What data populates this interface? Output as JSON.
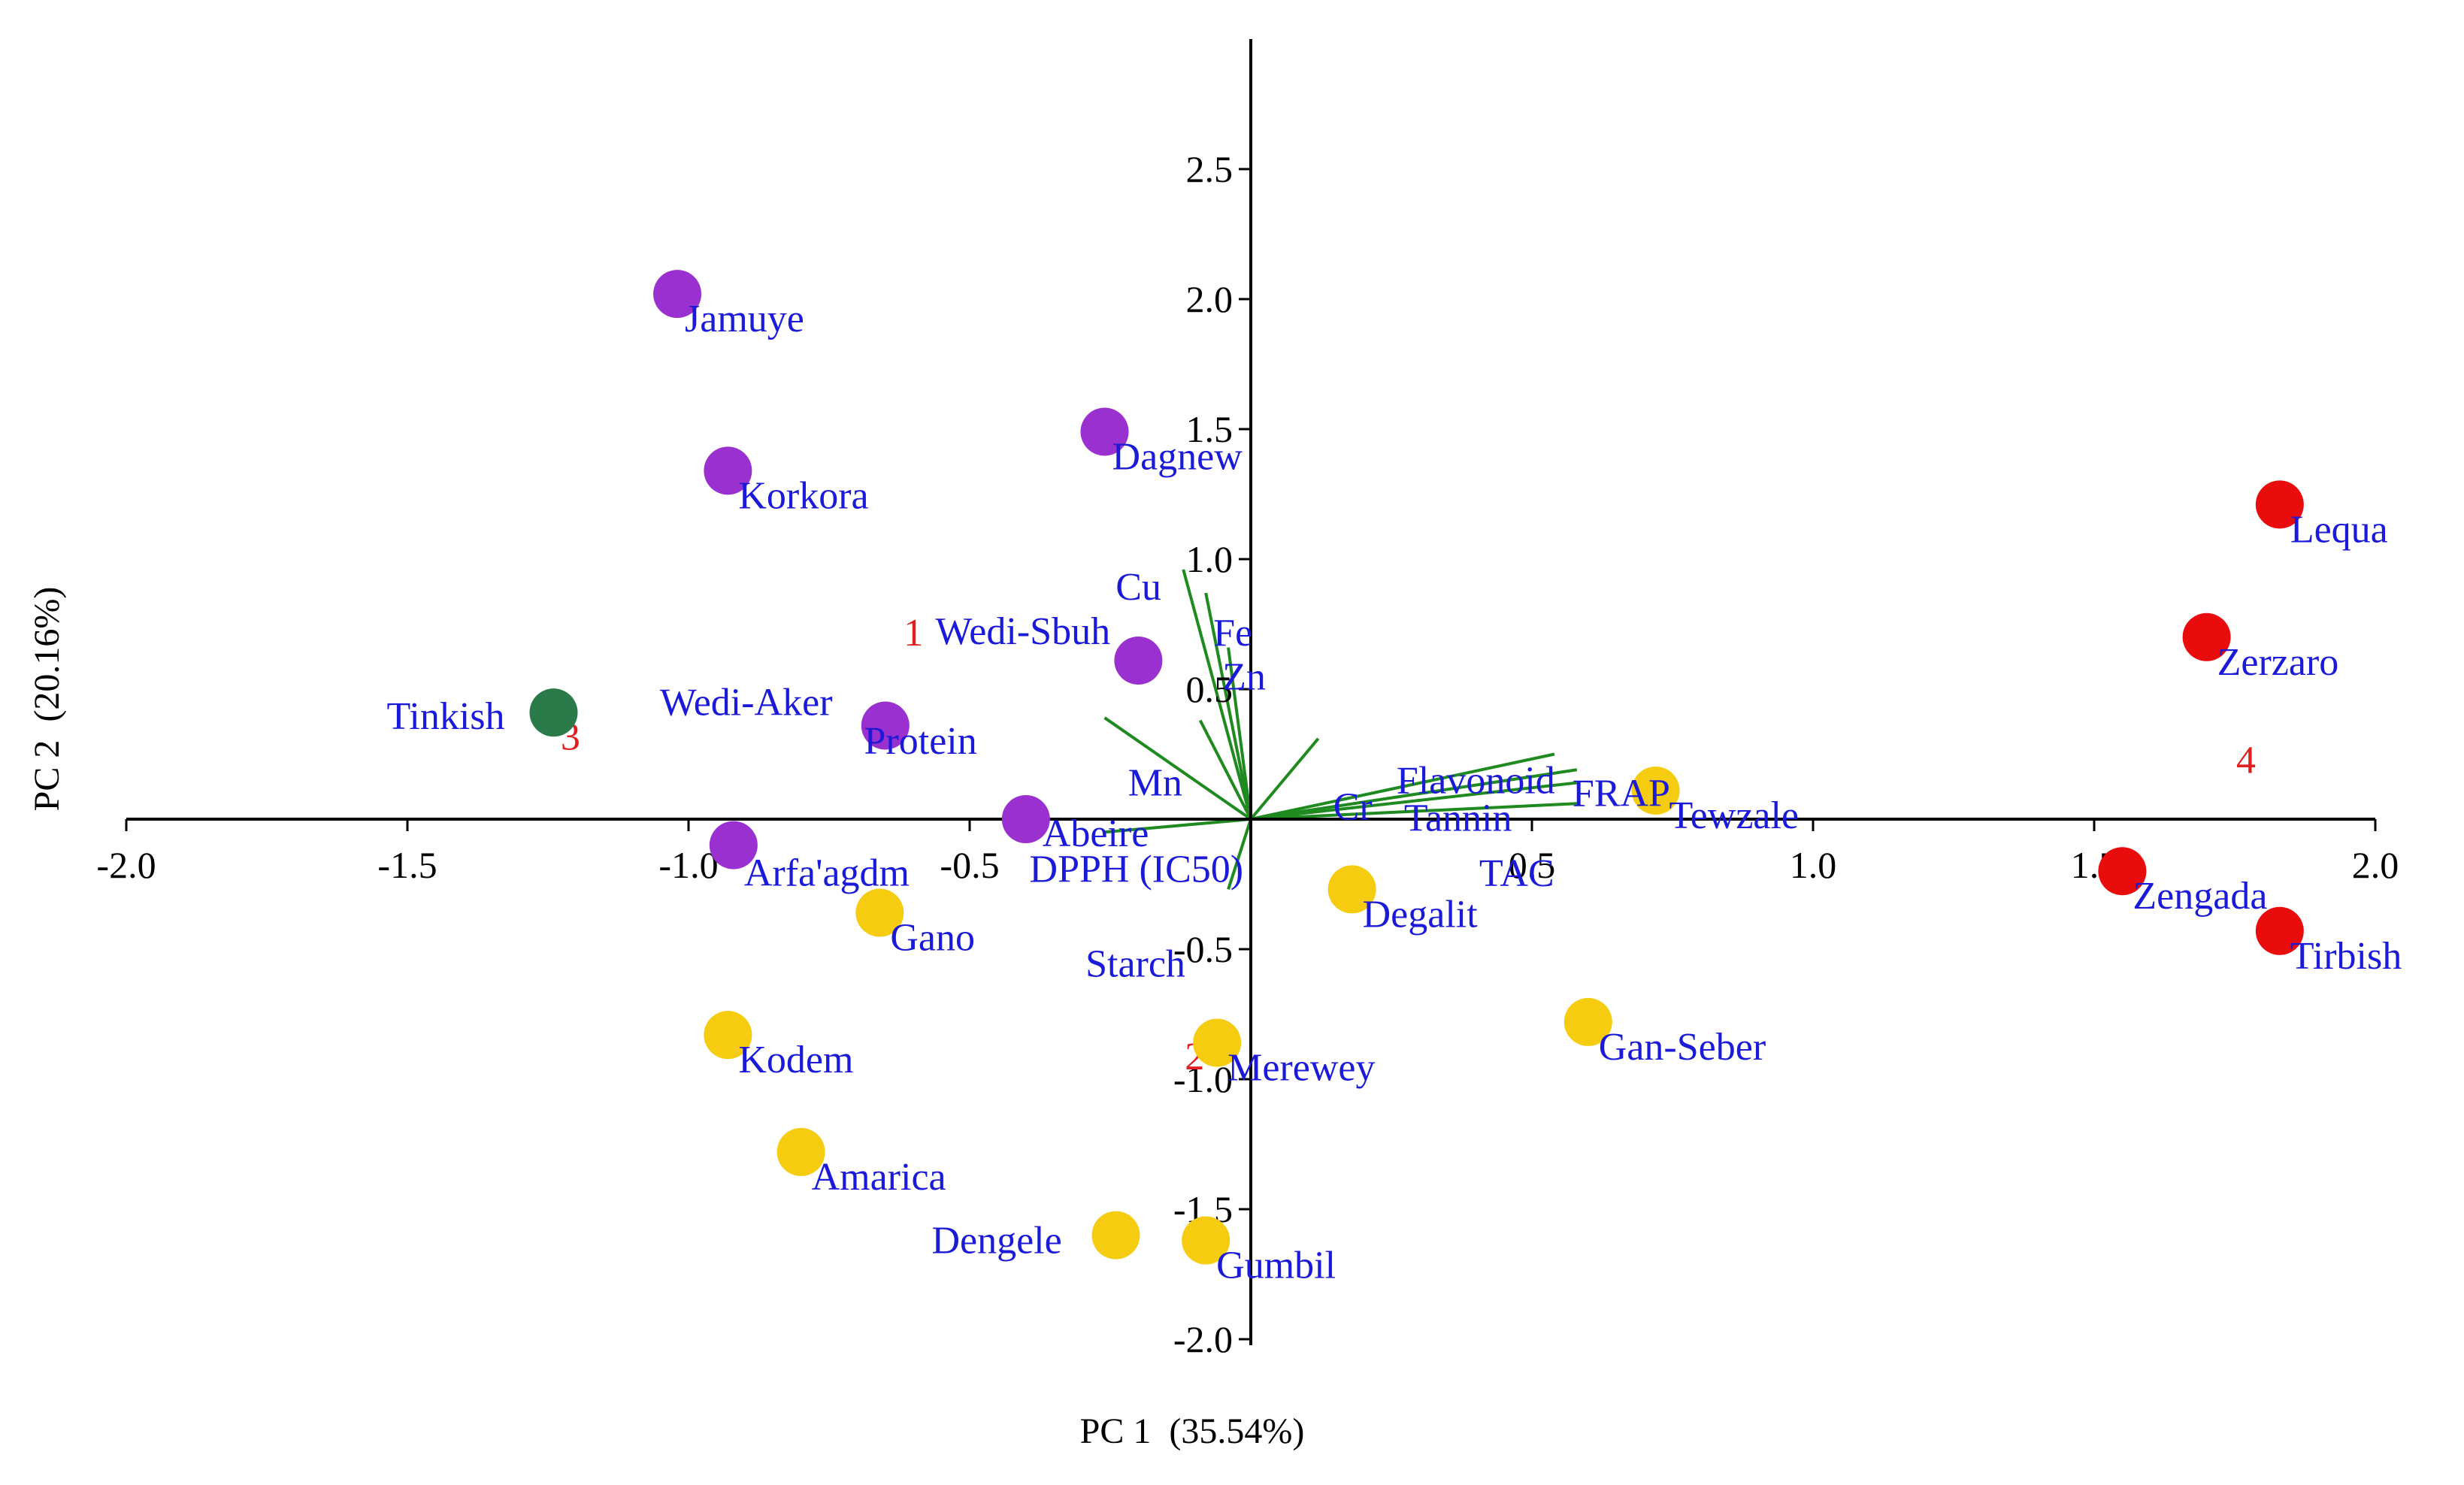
{
  "chart_data": {
    "type": "scatter",
    "subtype": "pca-biplot",
    "xlabel": "PC 1  (35.54%)",
    "ylabel": "PC 2  (20.16%)",
    "xlim": [
      -2.0,
      2.0
    ],
    "ylim": [
      -2.0,
      2.9
    ],
    "grid": false,
    "x_ticks": [
      -2.0,
      -1.5,
      -1.0,
      -0.5,
      0.5,
      1.0,
      1.5,
      2.0
    ],
    "x_tick_labels": [
      "-2.0",
      "-1.5",
      "-1.0",
      "-0.5",
      "0.5",
      "1.0",
      "1.5",
      "2.0"
    ],
    "y_ticks": [
      2.5,
      2.0,
      1.5,
      1.0,
      0.5,
      -0.5,
      -1.0,
      -1.5,
      -2.0
    ],
    "y_tick_labels": [
      "2.5",
      "2.0",
      "1.5",
      "1.0",
      "0.5",
      "-0.5",
      "-1.0",
      "-1.5",
      "-2.0"
    ],
    "colors": {
      "group_1": "#9b30d0",
      "group_2": "#f5cc10",
      "group_3": "#2a7a4a",
      "group_4": "#e80c0c",
      "loading_vector": "#1f8a1f",
      "label_text": "#1a1ad8",
      "cluster_number": "#e02020",
      "axis": "#000000"
    },
    "series": [
      {
        "group": "1",
        "color": "#9b30d0",
        "points": [
          {
            "label": "Jamuye",
            "x": -1.02,
            "y": 2.02
          },
          {
            "label": "Korkora",
            "x": -0.93,
            "y": 1.34
          },
          {
            "label": "Dagnew",
            "x": -0.26,
            "y": 1.49
          },
          {
            "label": "Wedi-Sbuh",
            "x": -0.2,
            "y": 0.61
          },
          {
            "label": "Wedi-Aker",
            "x": -0.65,
            "y": 0.36
          },
          {
            "label": "Arfa'agdm",
            "x": -0.92,
            "y": -0.1
          },
          {
            "label": "Abeire",
            "x": -0.4,
            "y": 0.0
          }
        ]
      },
      {
        "group": "2",
        "color": "#f5cc10",
        "points": [
          {
            "label": "Tewzale",
            "x": 0.72,
            "y": 0.11
          },
          {
            "label": "Degalit",
            "x": 0.18,
            "y": -0.27
          },
          {
            "label": "Gano",
            "x": -0.66,
            "y": -0.36
          },
          {
            "label": "Gan-Seber",
            "x": 0.6,
            "y": -0.78
          },
          {
            "label": "Kodem",
            "x": -0.93,
            "y": -0.83
          },
          {
            "label": "Merewey",
            "x": -0.06,
            "y": -0.86
          },
          {
            "label": "Amarica",
            "x": -0.8,
            "y": -1.28
          },
          {
            "label": "Dengele",
            "x": -0.24,
            "y": -1.6
          },
          {
            "label": "Gumbil",
            "x": -0.08,
            "y": -1.62
          }
        ]
      },
      {
        "group": "3",
        "color": "#2a7a4a",
        "points": [
          {
            "label": "Tinkish",
            "x": -1.24,
            "y": 0.41
          }
        ]
      },
      {
        "group": "4",
        "color": "#e80c0c",
        "points": [
          {
            "label": "Lequa",
            "x": 1.83,
            "y": 1.21
          },
          {
            "label": "Zerzaro",
            "x": 1.7,
            "y": 0.7
          },
          {
            "label": "Zengada",
            "x": 1.55,
            "y": -0.2
          },
          {
            "label": "Tirbish",
            "x": 1.83,
            "y": -0.43
          }
        ]
      }
    ],
    "loadings": [
      {
        "label": "Cu",
        "x": -0.12,
        "y": 0.96
      },
      {
        "label": "Fe",
        "x": -0.08,
        "y": 0.87
      },
      {
        "label": "Zn",
        "x": -0.04,
        "y": 0.66
      },
      {
        "label": "Protein",
        "x": -0.26,
        "y": 0.39
      },
      {
        "label": "Mn",
        "x": -0.09,
        "y": 0.38
      },
      {
        "label": "Cr",
        "x": 0.12,
        "y": 0.31
      },
      {
        "label": "Flavonoid",
        "x": 0.54,
        "y": 0.25
      },
      {
        "label": "FRAP",
        "x": 0.58,
        "y": 0.19
      },
      {
        "label": "Tannin",
        "x": 0.58,
        "y": 0.14
      },
      {
        "label": "TAC",
        "x": 0.58,
        "y": 0.06
      },
      {
        "label": "DPPH (IC50)",
        "x": -0.26,
        "y": -0.05
      },
      {
        "label": "Starch",
        "x": -0.04,
        "y": -0.27
      }
    ],
    "cluster_numbers": [
      {
        "text": "1",
        "x": -0.6,
        "y": 0.72
      },
      {
        "text": "2",
        "x": -0.1,
        "y": -0.91
      },
      {
        "text": "3",
        "x": -1.21,
        "y": 0.32
      },
      {
        "text": "4",
        "x": 1.77,
        "y": 0.23
      }
    ]
  }
}
